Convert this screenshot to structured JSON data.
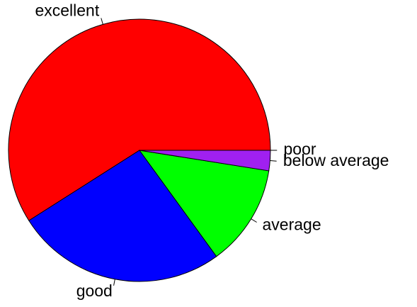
{
  "chart_data": {
    "type": "pie",
    "categories": [
      "excellent",
      "good",
      "average",
      "below average",
      "poor"
    ],
    "values": [
      59,
      26,
      12.5,
      2.5,
      0
    ],
    "colors": [
      "#ff0000",
      "#0000ff",
      "#00ff00",
      "#a020f0",
      "#ffa500"
    ]
  }
}
